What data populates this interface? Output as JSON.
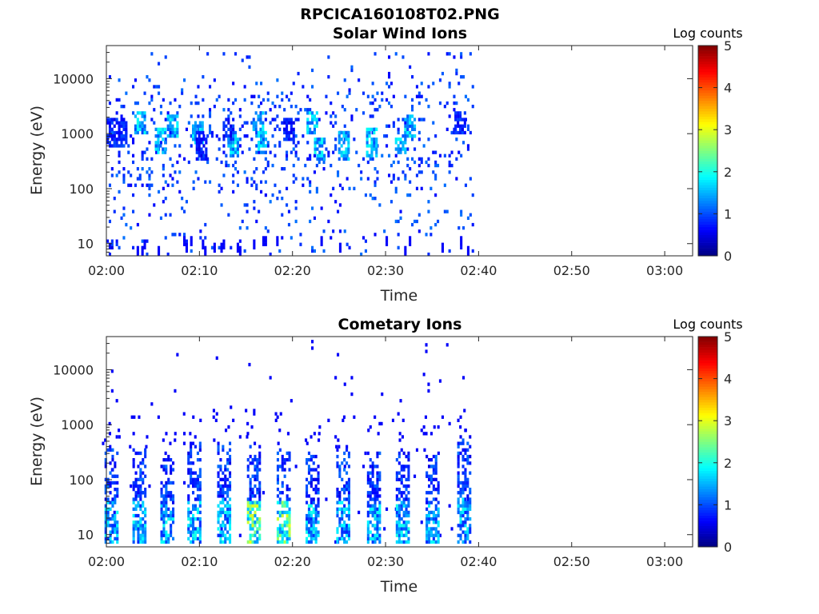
{
  "figure_title": "RPCICA160108T02.PNG",
  "colorbar": {
    "label": "Log counts",
    "ticks": [
      "0",
      "1",
      "2",
      "3",
      "4",
      "5"
    ],
    "range": [
      0,
      5
    ],
    "colormap": "jet"
  },
  "chart_data": [
    {
      "type": "heatmap",
      "title": "Solar Wind Ions",
      "xlabel": "Time",
      "ylabel": "Energy (eV)",
      "x_ticks": [
        "02:00",
        "02:10",
        "02:20",
        "02:30",
        "02:40",
        "02:50",
        "03:00"
      ],
      "y_ticks": [
        "10",
        "100",
        "1000",
        "10000"
      ],
      "y_scale": "log",
      "xlim_minutes_after_0200": [
        0,
        63
      ],
      "ylim_eV": [
        6,
        40000
      ],
      "data_end_minutes": 39.5,
      "grid": false,
      "patches": [
        {
          "t": 0.5,
          "e": 10,
          "w": 0.5,
          "n": 3,
          "level": 1
        },
        {
          "t": 1,
          "e": 1000,
          "w": 1,
          "n": 8,
          "level": 1
        },
        {
          "t": 3.5,
          "e": 1500,
          "w": 0.5,
          "n": 6,
          "level": 2
        },
        {
          "t": 5.8,
          "e": 700,
          "w": 0.6,
          "n": 9,
          "level": 2
        },
        {
          "t": 7,
          "e": 1400,
          "w": 0.5,
          "n": 6,
          "level": 2
        },
        {
          "t": 9.7,
          "e": 1100,
          "w": 0.5,
          "n": 7,
          "level": 2
        },
        {
          "t": 10.2,
          "e": 600,
          "w": 0.6,
          "n": 8,
          "level": 1
        },
        {
          "t": 13,
          "e": 1200,
          "w": 0.5,
          "n": 6,
          "level": 1
        },
        {
          "t": 13.5,
          "e": 600,
          "w": 0.5,
          "n": 6,
          "level": 2
        },
        {
          "t": 16.2,
          "e": 1500,
          "w": 0.5,
          "n": 6,
          "level": 2
        },
        {
          "t": 16.5,
          "e": 700,
          "w": 0.5,
          "n": 7,
          "level": 2
        },
        {
          "t": 19.5,
          "e": 1200,
          "w": 0.5,
          "n": 6,
          "level": 1
        },
        {
          "t": 22,
          "e": 1600,
          "w": 0.5,
          "n": 6,
          "level": 2
        },
        {
          "t": 22.8,
          "e": 500,
          "w": 0.5,
          "n": 7,
          "level": 2
        },
        {
          "t": 25.5,
          "e": 600,
          "w": 0.6,
          "n": 8,
          "level": 2
        },
        {
          "t": 28.5,
          "e": 700,
          "w": 0.6,
          "n": 8,
          "level": 2
        },
        {
          "t": 31.5,
          "e": 700,
          "w": 0.5,
          "n": 6,
          "level": 2
        },
        {
          "t": 32.5,
          "e": 1300,
          "w": 0.5,
          "n": 6,
          "level": 2
        },
        {
          "t": 38,
          "e": 1500,
          "w": 0.6,
          "n": 7,
          "level": 1
        }
      ]
    },
    {
      "type": "heatmap",
      "title": "Cometary Ions",
      "xlabel": "Time",
      "ylabel": "Energy (eV)",
      "x_ticks": [
        "02:00",
        "02:10",
        "02:20",
        "02:30",
        "02:40",
        "02:50",
        "03:00"
      ],
      "y_ticks": [
        "10",
        "100",
        "1000",
        "10000"
      ],
      "y_scale": "log",
      "xlim_minutes_after_0200": [
        0,
        63
      ],
      "ylim_eV": [
        6,
        40000
      ],
      "data_end_minutes": 39,
      "grid": false,
      "bursts": [
        {
          "t": 0.3,
          "e_top": 400,
          "level": 2
        },
        {
          "t": 3.3,
          "e_top": 350,
          "level": 2
        },
        {
          "t": 6.3,
          "e_top": 300,
          "level": 2
        },
        {
          "t": 9.2,
          "e_top": 450,
          "level": 2
        },
        {
          "t": 12.4,
          "e_top": 500,
          "level": 2
        },
        {
          "t": 15.6,
          "e_top": 400,
          "level": 3
        },
        {
          "t": 18.8,
          "e_top": 350,
          "level": 3
        },
        {
          "t": 21.9,
          "e_top": 300,
          "level": 2
        },
        {
          "t": 25.2,
          "e_top": 350,
          "level": 2
        },
        {
          "t": 28.5,
          "e_top": 300,
          "level": 2
        },
        {
          "t": 31.6,
          "e_top": 350,
          "level": 2
        },
        {
          "t": 34.8,
          "e_top": 300,
          "level": 2
        },
        {
          "t": 38.2,
          "e_top": 600,
          "level": 2
        }
      ]
    }
  ]
}
